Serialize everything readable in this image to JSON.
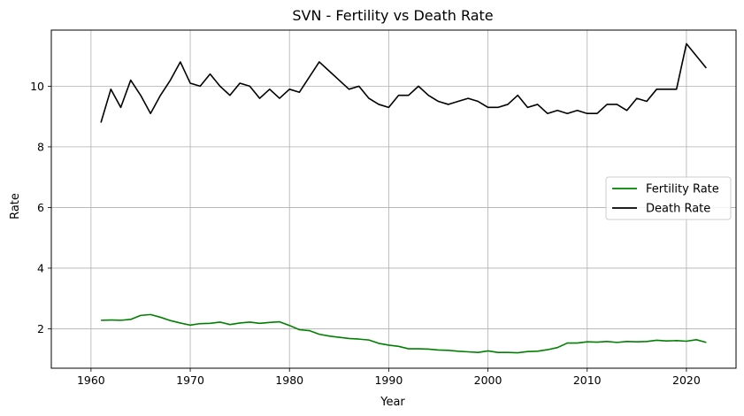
{
  "chart_data": {
    "type": "line",
    "title": "SVN - Fertility vs Death Rate",
    "xlabel": "Year",
    "ylabel": "Rate",
    "xlim": [
      1956,
      2025
    ],
    "ylim": [
      0.7,
      11.85
    ],
    "x_ticks": [
      1960,
      1970,
      1980,
      1990,
      2000,
      2010,
      2020
    ],
    "y_ticks": [
      2,
      4,
      6,
      8,
      10
    ],
    "grid": true,
    "legend_position": "center-right",
    "x": [
      1961,
      1962,
      1963,
      1964,
      1965,
      1966,
      1967,
      1968,
      1969,
      1970,
      1971,
      1972,
      1973,
      1974,
      1975,
      1976,
      1977,
      1978,
      1979,
      1980,
      1981,
      1982,
      1983,
      1984,
      1985,
      1986,
      1987,
      1988,
      1989,
      1990,
      1991,
      1992,
      1993,
      1994,
      1995,
      1996,
      1997,
      1998,
      1999,
      2000,
      2001,
      2002,
      2003,
      2004,
      2005,
      2006,
      2007,
      2008,
      2009,
      2010,
      2011,
      2012,
      2013,
      2014,
      2015,
      2016,
      2017,
      2018,
      2019,
      2020,
      2021,
      2022
    ],
    "series": [
      {
        "name": "Fertility Rate",
        "color": "#008000",
        "values": [
          2.28,
          2.29,
          2.28,
          2.31,
          2.44,
          2.47,
          2.38,
          2.27,
          2.19,
          2.12,
          2.17,
          2.18,
          2.22,
          2.14,
          2.19,
          2.22,
          2.18,
          2.21,
          2.23,
          2.11,
          1.97,
          1.94,
          1.82,
          1.76,
          1.72,
          1.68,
          1.66,
          1.63,
          1.52,
          1.46,
          1.42,
          1.34,
          1.34,
          1.33,
          1.3,
          1.29,
          1.26,
          1.24,
          1.22,
          1.27,
          1.22,
          1.22,
          1.21,
          1.25,
          1.26,
          1.31,
          1.38,
          1.53,
          1.53,
          1.57,
          1.56,
          1.58,
          1.55,
          1.58,
          1.57,
          1.58,
          1.62,
          1.6,
          1.61,
          1.59,
          1.64,
          1.55
        ]
      },
      {
        "name": "Death Rate",
        "color": "#000000",
        "values": [
          8.8,
          9.9,
          9.3,
          10.2,
          9.7,
          9.1,
          9.7,
          10.2,
          10.8,
          10.1,
          10.0,
          10.4,
          10.0,
          9.7,
          10.1,
          10.0,
          9.6,
          9.9,
          9.6,
          9.9,
          9.8,
          10.3,
          10.8,
          10.5,
          10.2,
          9.9,
          10.0,
          9.6,
          9.4,
          9.3,
          9.7,
          9.7,
          10.0,
          9.7,
          9.5,
          9.4,
          9.5,
          9.6,
          9.5,
          9.3,
          9.3,
          9.4,
          9.7,
          9.3,
          9.4,
          9.1,
          9.2,
          9.1,
          9.2,
          9.1,
          9.1,
          9.4,
          9.4,
          9.2,
          9.6,
          9.5,
          9.9,
          9.9,
          9.9,
          11.4,
          11.0,
          10.6
        ]
      }
    ]
  }
}
